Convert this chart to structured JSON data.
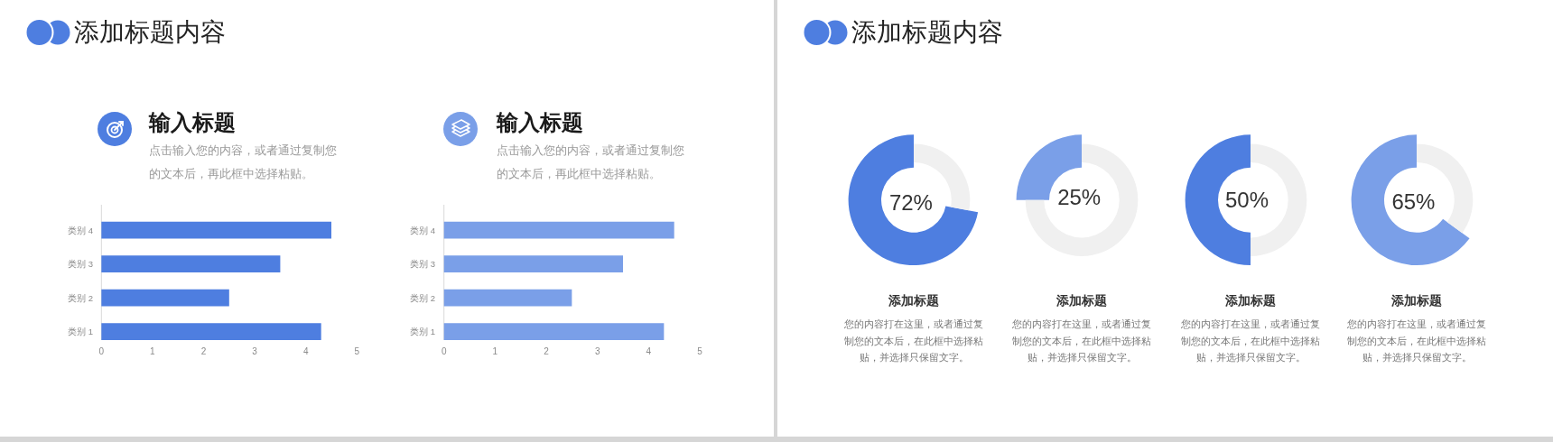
{
  "chart_data": [
    {
      "type": "other",
      "title": "添加标题内容"
    },
    {
      "type": "bar",
      "orientation": "horizontal",
      "title": "输入标题",
      "subtitle": "点击输入您的内容，或者通过复制您的文本后，再此框中选择粘贴。",
      "categories": [
        "类别 4",
        "类别 3",
        "类别 2",
        "类别 1"
      ],
      "values": [
        4.5,
        3.5,
        2.5,
        4.3
      ],
      "color": "#4e7ee0",
      "xlim": [
        0,
        5
      ],
      "xticks": [
        0,
        1,
        2,
        3,
        4,
        5
      ]
    },
    {
      "type": "bar",
      "orientation": "horizontal",
      "title": "输入标题",
      "subtitle": "点击输入您的内容，或者通过复制您的文本后，再此框中选择粘贴。",
      "categories": [
        "类别 4",
        "类别 3",
        "类别 2",
        "类别 1"
      ],
      "values": [
        4.5,
        3.5,
        2.5,
        4.3
      ],
      "color": "#7a9fe8",
      "xlim": [
        0,
        5
      ],
      "xticks": [
        0,
        1,
        2,
        3,
        4,
        5
      ]
    },
    {
      "type": "other",
      "title": "添加标题内容"
    },
    {
      "type": "donut",
      "title": "添加标题",
      "subtitle": "您的内容打在这里，或者通过复制您的文本后，在此框中选择粘贴，并选择只保留文字。",
      "categories": [
        null,
        null
      ],
      "values": [
        72,
        28
      ],
      "colors": [
        "#4e7ee0",
        "#f0f0f0"
      ],
      "value_labels": [
        "72%",
        null
      ]
    },
    {
      "type": "donut",
      "title": "添加标题",
      "subtitle": "您的内容打在这里，或者通过复制您的文本后，在此框中选择粘贴，并选择只保留文字。",
      "categories": [
        null,
        null
      ],
      "values": [
        25,
        75
      ],
      "colors": [
        "#7a9fe8",
        "#f0f0f0"
      ],
      "value_labels": [
        "25%",
        null
      ]
    },
    {
      "type": "donut",
      "title": "添加标题",
      "subtitle": "您的内容打在这里，或者通过复制您的文本后，在此框中选择粘贴，并选择只保留文字。",
      "categories": [
        null,
        null
      ],
      "values": [
        50,
        50
      ],
      "colors": [
        "#4e7ee0",
        "#f0f0f0"
      ],
      "value_labels": [
        "50%",
        null
      ]
    },
    {
      "type": "donut",
      "title": "添加标题",
      "subtitle": "您的内容打在这里，或者通过复制您的文本后，在此框中选择粘贴，并选择只保留文字。",
      "categories": [
        null,
        null
      ],
      "values": [
        65,
        35
      ],
      "colors": [
        "#7a9fe8",
        "#f0f0f0"
      ],
      "value_labels": [
        "65%",
        null
      ]
    }
  ]
}
